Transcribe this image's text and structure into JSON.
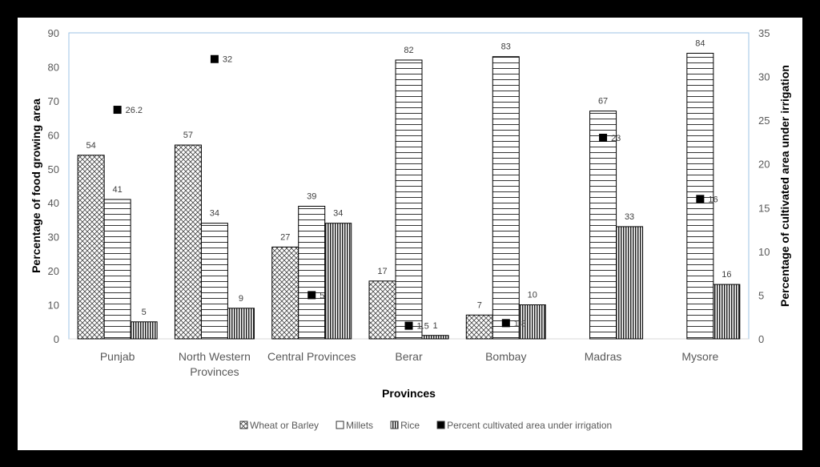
{
  "chart_data": {
    "type": "bar",
    "title": "",
    "xlabel": "Provinces",
    "ylabel": "Percentage of food growing area",
    "y2label": "Percentage of cultivated area under irrigation",
    "ylim": [
      0,
      90
    ],
    "y2lim": [
      0,
      35
    ],
    "yticks": [
      0,
      10,
      20,
      30,
      40,
      50,
      60,
      70,
      80,
      90
    ],
    "y2ticks": [
      0,
      5,
      10,
      15,
      20,
      25,
      30,
      35
    ],
    "categories": [
      [
        "Punjab"
      ],
      [
        "North Western",
        "Provinces"
      ],
      [
        "Central Provinces"
      ],
      [
        "Berar"
      ],
      [
        "Bombay"
      ],
      [
        "Madras"
      ],
      [
        "Mysore"
      ]
    ],
    "series": [
      {
        "name": "Wheat or Barley",
        "type": "bar",
        "pattern": "crosshatch",
        "values": [
          54,
          57,
          27,
          17,
          7,
          0,
          0
        ],
        "labels": [
          "54",
          "57",
          "27",
          "17",
          "7",
          "",
          ""
        ]
      },
      {
        "name": "Millets",
        "type": "bar",
        "pattern": "horizontal",
        "values": [
          41,
          34,
          39,
          82,
          83,
          67,
          84
        ],
        "labels": [
          "41",
          "34",
          "39",
          "82",
          "83",
          "67",
          "84"
        ]
      },
      {
        "name": "Rice",
        "type": "bar",
        "pattern": "vertical",
        "values": [
          5,
          9,
          34,
          1,
          10,
          33,
          16
        ],
        "labels": [
          "5",
          "9",
          "34",
          "1",
          "10",
          "33",
          "16"
        ]
      },
      {
        "name": "Percent cultivated area under irrigation",
        "type": "scatter",
        "axis": "right",
        "values": [
          26.2,
          32,
          5,
          1.5,
          1.8,
          23,
          16
        ],
        "labels": [
          "26.2",
          "32",
          "5",
          "1.5",
          "1.8",
          "23",
          "16"
        ]
      }
    ],
    "legend_position": "bottom",
    "grid": false
  },
  "colors": {
    "axis_line": "#9dc3e6",
    "tick_text": "#595959",
    "bar_stroke": "#000000",
    "marker": "#000000"
  }
}
